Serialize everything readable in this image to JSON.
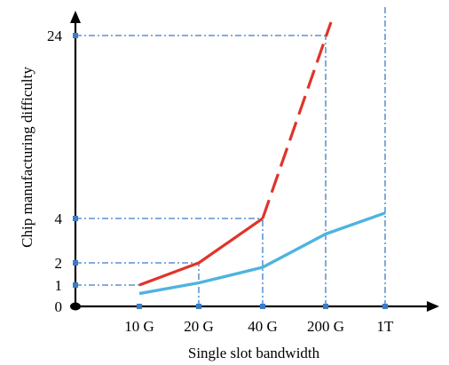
{
  "chart_data": {
    "type": "line",
    "title": "",
    "xlabel": "Single slot bandwidth",
    "ylabel": "Chip manufacturing difficulty",
    "categories": [
      "10 G",
      "20 G",
      "40 G",
      "200 G",
      "1T"
    ],
    "y_ticks": [
      {
        "value": 0,
        "label": "0"
      },
      {
        "value": 1,
        "label": "1"
      },
      {
        "value": 2,
        "label": "2"
      },
      {
        "value": 4,
        "label": "4"
      },
      {
        "value": 24,
        "label": "24"
      }
    ],
    "ylim": [
      0,
      24
    ],
    "y_scale": "nonlinear (0, 1, 2, 4, 24 at uneven spacing)",
    "grid": "dash-dot guide lines at tick values",
    "series": [
      {
        "color": "#e0342a",
        "style": "solid to 40 G, dashed to 200 G",
        "points": [
          {
            "x": "10 G",
            "y": 1
          },
          {
            "x": "20 G",
            "y": 2
          },
          {
            "x": "40 G",
            "y": 4
          },
          {
            "x": "200 G",
            "y": 24
          }
        ]
      },
      {
        "color": "#4eb3df",
        "style": "solid",
        "points": [
          {
            "x": "10 G",
            "y": 0.6
          },
          {
            "x": "20 G",
            "y": 1.1
          },
          {
            "x": "40 G",
            "y": 1.8
          },
          {
            "x": "200 G",
            "y": 3.3
          },
          {
            "x": "1T",
            "y": 4.6
          }
        ]
      }
    ],
    "colors": {
      "axis": "#000000",
      "guide": "#3a7cc6",
      "point": "#3a7cc6"
    }
  }
}
